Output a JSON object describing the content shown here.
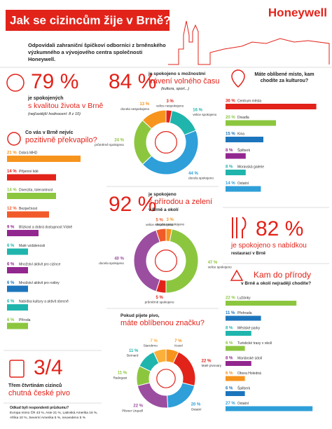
{
  "header": {
    "title": "Jak se cizincům žije v Brně?",
    "brand": "Honeywell",
    "intro": "Odpovídali zahraniční špičkoví odborníci z brněnského výzkumného a vývojového centra společnosti Honeywell."
  },
  "life": {
    "value": "79 %",
    "text1": "je spokojených",
    "text2": "s kvalitou života v Brně",
    "note": "(nejčastější hodnocení: 8 z 10)"
  },
  "leisure": {
    "value": "84 %",
    "text1": "je spokojeno s možnostmi",
    "text2": "trávení volného času",
    "note": "(kultura, sport...)"
  },
  "nature": {
    "value": "92 %",
    "text1": "je spokojeno",
    "text2": "s přírodou a zelení",
    "text3": "v Brně a okolí"
  },
  "restaurants": {
    "value": "82 %",
    "text1": "je spokojeno s nabídkou",
    "text2": "restaurací v Brně"
  },
  "beer": {
    "value": "3/4",
    "text1": "Třem čtvrtinám cizinců",
    "text2": "chutná české pivo"
  },
  "respondents": {
    "title": "Odkud byli respondenti průzkumu?",
    "text": "Evropa mimo ČR 43 %, Asie 21 %, Latinská Amerika 16 %, Afrika 10 %, Severní Amerika 5 %, neuvedeno 5 %"
  },
  "chart_data": [
    {
      "type": "bar",
      "title": "Co vás v Brně nejvíc",
      "subtitle": "pozitivně překvapilo?",
      "categories": [
        "Dobrá MHD",
        "Příjemní lidé",
        "Diverzita, tolerantnost",
        "Bezpečnost",
        "Blízkost a dobrá dostupnost Vídně",
        "Malé vzdálenosti",
        "Množství aktivit pro cizince",
        "Množství aktivit pro rodiny",
        "Nabídka kultury a aktivit obecně",
        "Příroda"
      ],
      "values": [
        21,
        14,
        14,
        12,
        9,
        6,
        6,
        6,
        6,
        6
      ],
      "value_labels": [
        "21 %",
        "14 %",
        "14 %",
        "12 %",
        "9 %",
        "6 %",
        "6 %",
        "6 %",
        "6 %",
        "6 %"
      ],
      "colors": [
        "#f7941d",
        "#e2231a",
        "#8cc63f",
        "#f15a29",
        "#92278f",
        "#1fb5ad",
        "#92278f",
        "#1c75bc",
        "#1fb5ad",
        "#8cc63f"
      ]
    },
    {
      "type": "donut",
      "categories": [
        "velice nespokojeno",
        "velice spokojeno",
        "docela spokojeno",
        "průměrně spokojeno",
        "docela nespokojeno"
      ],
      "values": [
        3,
        16,
        44,
        24,
        13
      ],
      "value_labels": [
        "3 %",
        "16 %",
        "44 %",
        "24 %",
        "13 %"
      ],
      "colors": [
        "#e2231a",
        "#1fb5ad",
        "#2e9fd9",
        "#8cc63f",
        "#f7941d"
      ]
    },
    {
      "type": "donut",
      "categories": [
        "docela nespokojeno",
        "velice spokojeno",
        "průměrně spokojeno",
        "docela spokojeno",
        "velice nespokojeno"
      ],
      "values": [
        3,
        47,
        5,
        40,
        5
      ],
      "value_labels": [
        "3 %",
        "47 %",
        "5 %",
        "40 %",
        "5 %"
      ],
      "colors": [
        "#f7941d",
        "#8cc63f",
        "#e2231a",
        "#9b4ea0",
        "#f15a29"
      ]
    },
    {
      "type": "donut",
      "title": "Pokud pijete pivo,",
      "subtitle": "máte oblíbenou značku?",
      "categories": [
        "Kozel",
        "Malé pivovary",
        "Ostatní",
        "Pilsner Urquell",
        "Radegast",
        "Bernard",
        "Starobrno"
      ],
      "values": [
        7,
        22,
        20,
        22,
        11,
        11,
        7
      ],
      "value_labels": [
        "7 %",
        "22 %",
        "20 %",
        "22 %",
        "11 %",
        "11 %",
        "7 %"
      ],
      "colors": [
        "#f7941d",
        "#e2231a",
        "#2e9fd9",
        "#9b4ea0",
        "#8cc63f",
        "#1fb5ad",
        "#fbb03b"
      ]
    },
    {
      "type": "bar",
      "title": "Máte oblíbené místo, kam chodíte za kulturou?",
      "categories": [
        "Centrum města",
        "Divadla",
        "Kina",
        "Špilberk",
        "Moravská galerie",
        "Ostatní"
      ],
      "values": [
        36,
        20,
        15,
        8,
        8,
        14
      ],
      "value_labels": [
        "36 %",
        "20 %",
        "15 %",
        "8 %",
        "8 %",
        "14 %"
      ],
      "colors": [
        "#e2231a",
        "#8cc63f",
        "#1c75bc",
        "#92278f",
        "#1fb5ad",
        "#2e9fd9"
      ]
    },
    {
      "type": "bar",
      "title": "Kam do přírody",
      "subtitle": "v Brně a okolí nejraději chodíte?",
      "categories": [
        "Lužánky",
        "Přehrada",
        "Městské parky",
        "Turistické trasy v okolí",
        "Mariánské údolí",
        "Obora Holedná",
        "Špilberk",
        "Ostatní"
      ],
      "values": [
        22,
        11,
        8,
        6,
        8,
        6,
        6,
        27
      ],
      "value_labels": [
        "22 %",
        "11 %",
        "8 %",
        "6 %",
        "8 %",
        "6 %",
        "6 %",
        "27 %"
      ],
      "colors": [
        "#8cc63f",
        "#1c75bc",
        "#1fb5ad",
        "#8cc63f",
        "#92278f",
        "#f7941d",
        "#1c75bc",
        "#2e9fd9"
      ]
    }
  ]
}
